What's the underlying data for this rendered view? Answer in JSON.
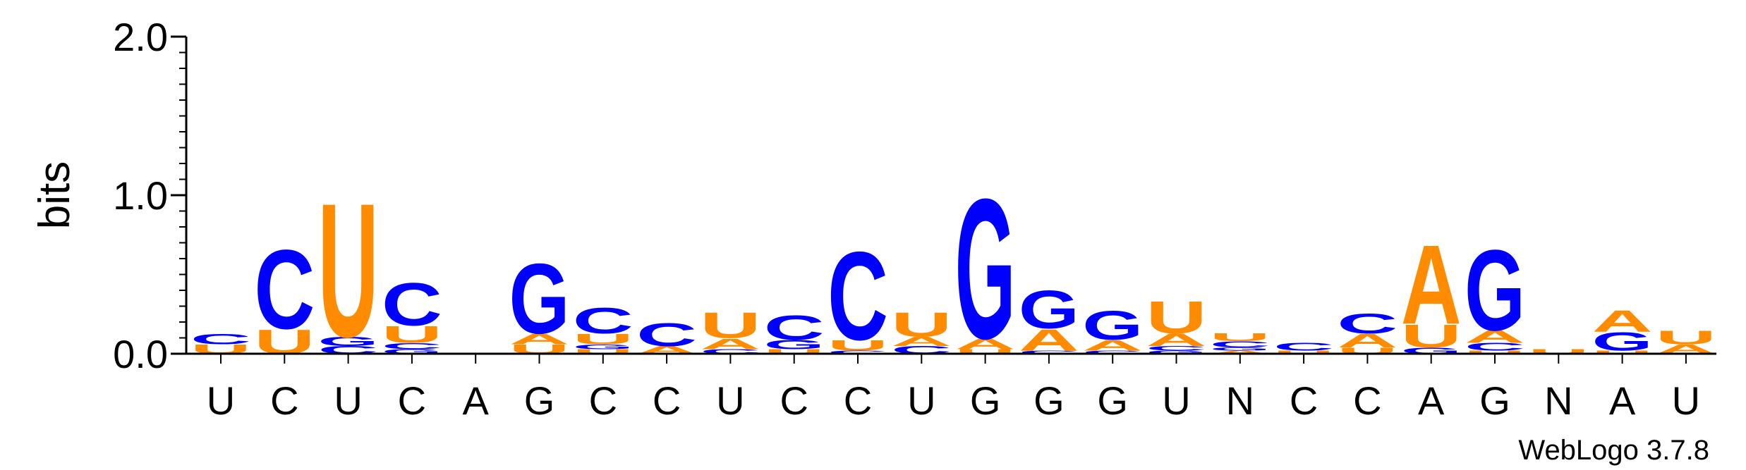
{
  "chart_data": {
    "type": "sequence-logo",
    "ylabel": "bits",
    "ylim": [
      0,
      2.0
    ],
    "yticks": [
      {
        "value": 0.0,
        "label": "0.0"
      },
      {
        "value": 1.0,
        "label": "1.0"
      },
      {
        "value": 2.0,
        "label": "2.0"
      }
    ],
    "xlabels": [
      "U",
      "C",
      "U",
      "C",
      "A",
      "G",
      "C",
      "C",
      "U",
      "C",
      "C",
      "U",
      "G",
      "G",
      "G",
      "U",
      "N",
      "C",
      "C",
      "A",
      "G",
      "N",
      "A",
      "U"
    ],
    "colors": {
      "C": "#0000ff",
      "G": "#0000ff",
      "U": "#ff8c00",
      "A": "#ff8c00"
    },
    "positions": [
      {
        "stack": [
          {
            "base": "U",
            "bits": 0.06
          },
          {
            "base": "C",
            "bits": 0.07
          }
        ]
      },
      {
        "stack": [
          {
            "base": "U",
            "bits": 0.16
          },
          {
            "base": "C",
            "bits": 0.52
          }
        ]
      },
      {
        "stack": [
          {
            "base": "C",
            "bits": 0.05
          },
          {
            "base": "G",
            "bits": 0.06
          },
          {
            "base": "U",
            "bits": 0.88
          }
        ]
      },
      {
        "stack": [
          {
            "base": "G",
            "bits": 0.03
          },
          {
            "base": "C",
            "bits": 0.04
          },
          {
            "base": "U",
            "bits": 0.11
          },
          {
            "base": "C",
            "bits": 0.28
          }
        ]
      },
      {
        "stack": []
      },
      {
        "stack": [
          {
            "base": "U",
            "bits": 0.06
          },
          {
            "base": "A",
            "bits": 0.07
          },
          {
            "base": "G",
            "bits": 0.46
          }
        ]
      },
      {
        "stack": [
          {
            "base": "U",
            "bits": 0.03
          },
          {
            "base": "G",
            "bits": 0.03
          },
          {
            "base": "U",
            "bits": 0.07
          },
          {
            "base": "C",
            "bits": 0.17
          }
        ]
      },
      {
        "stack": [
          {
            "base": "A",
            "bits": 0.05
          },
          {
            "base": "C",
            "bits": 0.15
          }
        ]
      },
      {
        "stack": [
          {
            "base": "C",
            "bits": 0.03
          },
          {
            "base": "A",
            "bits": 0.07
          },
          {
            "base": "U",
            "bits": 0.17
          }
        ]
      },
      {
        "stack": [
          {
            "base": "U",
            "bits": 0.03
          },
          {
            "base": "G",
            "bits": 0.06
          },
          {
            "base": "C",
            "bits": 0.16
          }
        ]
      },
      {
        "stack": [
          {
            "base": "C",
            "bits": 0.02
          },
          {
            "base": "U",
            "bits": 0.07
          },
          {
            "base": "C",
            "bits": 0.58
          }
        ]
      },
      {
        "stack": [
          {
            "base": "C",
            "bits": 0.05
          },
          {
            "base": "A",
            "bits": 0.06
          },
          {
            "base": "U",
            "bits": 0.16
          }
        ]
      },
      {
        "stack": [
          {
            "base": "U",
            "bits": 0.03
          },
          {
            "base": "A",
            "bits": 0.07
          },
          {
            "base": "G",
            "bits": 0.92
          }
        ]
      },
      {
        "stack": [
          {
            "base": "C",
            "bits": 0.02
          },
          {
            "base": "A",
            "bits": 0.14
          },
          {
            "base": "G",
            "bits": 0.25
          }
        ]
      },
      {
        "stack": [
          {
            "base": "C",
            "bits": 0.02
          },
          {
            "base": "A",
            "bits": 0.07
          },
          {
            "base": "G",
            "bits": 0.19
          }
        ]
      },
      {
        "stack": [
          {
            "base": "G",
            "bits": 0.02
          },
          {
            "base": "C",
            "bits": 0.03
          },
          {
            "base": "A",
            "bits": 0.08
          },
          {
            "base": "U",
            "bits": 0.21
          }
        ]
      },
      {
        "stack": [
          {
            "base": "A",
            "bits": 0.02
          },
          {
            "base": "G",
            "bits": 0.02
          },
          {
            "base": "C",
            "bits": 0.04
          },
          {
            "base": "U",
            "bits": 0.05
          }
        ]
      },
      {
        "stack": [
          {
            "base": "U",
            "bits": 0.02
          },
          {
            "base": "C",
            "bits": 0.05
          }
        ]
      },
      {
        "stack": [
          {
            "base": "U",
            "bits": 0.04
          },
          {
            "base": "A",
            "bits": 0.09
          },
          {
            "base": "C",
            "bits": 0.13
          }
        ]
      },
      {
        "stack": [
          {
            "base": "G",
            "bits": 0.04
          },
          {
            "base": "U",
            "bits": 0.15
          },
          {
            "base": "A",
            "bits": 0.52
          }
        ]
      },
      {
        "stack": [
          {
            "base": "U",
            "bits": 0.02
          },
          {
            "base": "C",
            "bits": 0.05
          },
          {
            "base": "A",
            "bits": 0.08
          },
          {
            "base": "G",
            "bits": 0.53
          }
        ]
      },
      {
        "stack": [
          {
            "base": "U",
            "bits": 0.03
          }
        ]
      },
      {
        "stack": [
          {
            "base": "U",
            "bits": 0.02
          },
          {
            "base": "G",
            "bits": 0.12
          },
          {
            "base": "A",
            "bits": 0.14
          }
        ]
      },
      {
        "stack": [
          {
            "base": "A",
            "bits": 0.06
          },
          {
            "base": "U",
            "bits": 0.09
          }
        ]
      }
    ],
    "footer": "WebLogo 3.7.8"
  }
}
